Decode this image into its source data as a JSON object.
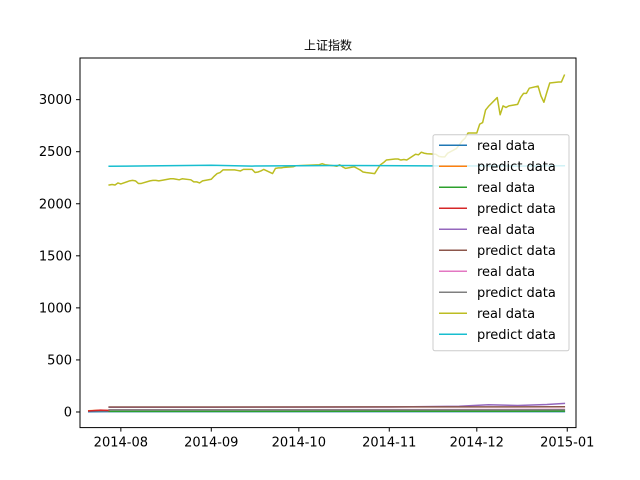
{
  "chart_data": {
    "type": "line",
    "title": "上证指数",
    "xlabel": "",
    "ylabel": "",
    "x_ticks": [
      "2014-08",
      "2014-09",
      "2014-10",
      "2014-11",
      "2014-12",
      "2015-01"
    ],
    "y_ticks": [
      0,
      500,
      1000,
      1500,
      2000,
      2500,
      3000
    ],
    "xlim": [
      "2014-07-18",
      "2015-01-04"
    ],
    "ylim": [
      -150,
      3400
    ],
    "grid": false,
    "legend_position": "center-right",
    "series": [
      {
        "name": "real data",
        "color": "#1f77b4",
        "points": [
          [
            "2014-07-21",
            2
          ],
          [
            "2014-07-28",
            3
          ],
          [
            "2014-08-15",
            3
          ],
          [
            "2014-09-15",
            3
          ],
          [
            "2014-10-15",
            3
          ],
          [
            "2014-11-15",
            3
          ],
          [
            "2014-12-15",
            4
          ],
          [
            "2014-12-31",
            4
          ]
        ]
      },
      {
        "name": "predict data",
        "color": "#ff7f0e",
        "points": [
          [
            "2014-07-21",
            12
          ],
          [
            "2014-07-24",
            16
          ],
          [
            "2014-07-28",
            14
          ]
        ]
      },
      {
        "name": "real data",
        "color": "#2ca02c",
        "points": [
          [
            "2014-07-28",
            6
          ],
          [
            "2014-09-15",
            6
          ],
          [
            "2014-11-15",
            7
          ],
          [
            "2014-12-31",
            8
          ]
        ]
      },
      {
        "name": "predict data",
        "color": "#d62728",
        "points": [
          [
            "2014-07-21",
            10
          ],
          [
            "2014-07-25",
            18
          ],
          [
            "2014-07-28",
            15
          ]
        ]
      },
      {
        "name": "real data",
        "color": "#9467bd",
        "points": [
          [
            "2014-07-28",
            45
          ],
          [
            "2014-09-01",
            46
          ],
          [
            "2014-10-01",
            47
          ],
          [
            "2014-11-01",
            48
          ],
          [
            "2014-11-25",
            55
          ],
          [
            "2014-12-05",
            70
          ],
          [
            "2014-12-15",
            62
          ],
          [
            "2014-12-25",
            72
          ],
          [
            "2014-12-31",
            82
          ]
        ]
      },
      {
        "name": "predict data",
        "color": "#8c564b",
        "points": [
          [
            "2014-07-28",
            48
          ],
          [
            "2014-09-15",
            48
          ],
          [
            "2014-11-15",
            49
          ],
          [
            "2014-12-31",
            50
          ]
        ]
      },
      {
        "name": "real data",
        "color": "#e377c2",
        "points": [
          [
            "2014-07-28",
            22
          ],
          [
            "2014-09-15",
            22
          ],
          [
            "2014-11-15",
            23
          ],
          [
            "2014-12-31",
            25
          ]
        ]
      },
      {
        "name": "predict data",
        "color": "#7f7f7f",
        "points": [
          [
            "2014-07-28",
            20
          ],
          [
            "2014-09-15",
            20
          ],
          [
            "2014-11-15",
            20
          ],
          [
            "2014-12-31",
            21
          ]
        ]
      },
      {
        "name": "real data",
        "color": "#bcbd22",
        "points": [
          [
            "2014-07-28",
            2180
          ],
          [
            "2014-07-29",
            2185
          ],
          [
            "2014-07-30",
            2180
          ],
          [
            "2014-07-31",
            2200
          ],
          [
            "2014-08-01",
            2190
          ],
          [
            "2014-08-04",
            2220
          ],
          [
            "2014-08-05",
            2225
          ],
          [
            "2014-08-06",
            2220
          ],
          [
            "2014-08-07",
            2195
          ],
          [
            "2014-08-08",
            2195
          ],
          [
            "2014-08-11",
            2220
          ],
          [
            "2014-08-12",
            2225
          ],
          [
            "2014-08-13",
            2225
          ],
          [
            "2014-08-14",
            2220
          ],
          [
            "2014-08-15",
            2225
          ],
          [
            "2014-08-18",
            2240
          ],
          [
            "2014-08-19",
            2240
          ],
          [
            "2014-08-20",
            2235
          ],
          [
            "2014-08-21",
            2230
          ],
          [
            "2014-08-22",
            2240
          ],
          [
            "2014-08-25",
            2230
          ],
          [
            "2014-08-26",
            2210
          ],
          [
            "2014-08-27",
            2210
          ],
          [
            "2014-08-28",
            2200
          ],
          [
            "2014-08-29",
            2220
          ],
          [
            "2014-09-01",
            2235
          ],
          [
            "2014-09-02",
            2265
          ],
          [
            "2014-09-03",
            2290
          ],
          [
            "2014-09-04",
            2300
          ],
          [
            "2014-09-05",
            2325
          ],
          [
            "2014-09-09",
            2325
          ],
          [
            "2014-09-10",
            2320
          ],
          [
            "2014-09-11",
            2315
          ],
          [
            "2014-09-12",
            2330
          ],
          [
            "2014-09-15",
            2330
          ],
          [
            "2014-09-16",
            2300
          ],
          [
            "2014-09-17",
            2305
          ],
          [
            "2014-09-18",
            2315
          ],
          [
            "2014-09-19",
            2330
          ],
          [
            "2014-09-22",
            2290
          ],
          [
            "2014-09-23",
            2340
          ],
          [
            "2014-09-24",
            2345
          ],
          [
            "2014-09-25",
            2345
          ],
          [
            "2014-09-26",
            2350
          ],
          [
            "2014-09-29",
            2355
          ],
          [
            "2014-09-30",
            2365
          ],
          [
            "2014-10-08",
            2375
          ],
          [
            "2014-10-09",
            2385
          ],
          [
            "2014-10-10",
            2375
          ],
          [
            "2014-10-13",
            2365
          ],
          [
            "2014-10-14",
            2360
          ],
          [
            "2014-10-15",
            2375
          ],
          [
            "2014-10-16",
            2355
          ],
          [
            "2014-10-17",
            2340
          ],
          [
            "2014-10-20",
            2355
          ],
          [
            "2014-10-21",
            2340
          ],
          [
            "2014-10-22",
            2325
          ],
          [
            "2014-10-23",
            2305
          ],
          [
            "2014-10-24",
            2300
          ],
          [
            "2014-10-27",
            2290
          ],
          [
            "2014-10-28",
            2335
          ],
          [
            "2014-10-29",
            2375
          ],
          [
            "2014-10-30",
            2395
          ],
          [
            "2014-10-31",
            2420
          ],
          [
            "2014-11-03",
            2430
          ],
          [
            "2014-11-04",
            2430
          ],
          [
            "2014-11-05",
            2420
          ],
          [
            "2014-11-06",
            2425
          ],
          [
            "2014-11-07",
            2420
          ],
          [
            "2014-11-10",
            2475
          ],
          [
            "2014-11-11",
            2470
          ],
          [
            "2014-11-12",
            2495
          ],
          [
            "2014-11-13",
            2485
          ],
          [
            "2014-11-14",
            2480
          ],
          [
            "2014-11-17",
            2475
          ],
          [
            "2014-11-18",
            2455
          ],
          [
            "2014-11-19",
            2450
          ],
          [
            "2014-11-20",
            2450
          ],
          [
            "2014-11-21",
            2485
          ],
          [
            "2014-11-24",
            2530
          ],
          [
            "2014-11-25",
            2565
          ],
          [
            "2014-11-26",
            2605
          ],
          [
            "2014-11-27",
            2630
          ],
          [
            "2014-11-28",
            2680
          ],
          [
            "2014-12-01",
            2680
          ],
          [
            "2014-12-02",
            2765
          ],
          [
            "2014-12-03",
            2780
          ],
          [
            "2014-12-04",
            2900
          ],
          [
            "2014-12-05",
            2935
          ],
          [
            "2014-12-08",
            3020
          ],
          [
            "2014-12-09",
            2855
          ],
          [
            "2014-12-10",
            2940
          ],
          [
            "2014-12-11",
            2925
          ],
          [
            "2014-12-12",
            2940
          ],
          [
            "2014-12-15",
            2955
          ],
          [
            "2014-12-16",
            3020
          ],
          [
            "2014-12-17",
            3060
          ],
          [
            "2014-12-18",
            3060
          ],
          [
            "2014-12-19",
            3110
          ],
          [
            "2014-12-22",
            3130
          ],
          [
            "2014-12-23",
            3035
          ],
          [
            "2014-12-24",
            2975
          ],
          [
            "2014-12-25",
            3070
          ],
          [
            "2014-12-26",
            3160
          ],
          [
            "2014-12-29",
            3170
          ],
          [
            "2014-12-30",
            3170
          ],
          [
            "2014-12-31",
            3235
          ]
        ]
      },
      {
        "name": "predict data",
        "color": "#17becf",
        "points": [
          [
            "2014-07-28",
            2360
          ],
          [
            "2014-08-15",
            2365
          ],
          [
            "2014-09-01",
            2370
          ],
          [
            "2014-09-15",
            2362
          ],
          [
            "2014-10-15",
            2368
          ],
          [
            "2014-11-15",
            2364
          ],
          [
            "2014-12-15",
            2362
          ],
          [
            "2014-12-31",
            2365
          ]
        ]
      }
    ]
  }
}
